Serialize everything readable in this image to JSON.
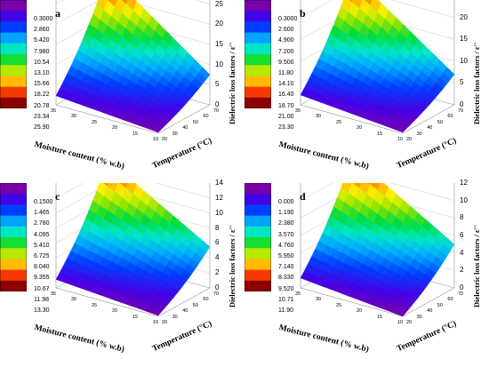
{
  "chart_data": [
    {
      "type": "surface3d",
      "panel": "a",
      "xlabel": "Moisture content (% w.b)",
      "ylabel": "Temperature (°C)",
      "zlabel": "Dielectric loss factors / ε''",
      "zticks": [
        "0",
        "5",
        "10",
        "15",
        "20",
        "25"
      ],
      "zlim": [
        0,
        26
      ],
      "colorbar_ticks": [
        "0.3000",
        "2.860",
        "5.420",
        "7.980",
        "10.54",
        "13.10",
        "15.66",
        "18.22",
        "20.78",
        "23.34",
        "25.90"
      ],
      "moisture_ticks": [
        "35",
        "30",
        "25",
        "20",
        "15",
        "10"
      ],
      "temperature_ticks": [
        "20",
        "30",
        "40",
        "50",
        "60",
        "70"
      ],
      "corners": {
        "high_moisture_high_temp": 25.9,
        "low_moisture_high_temp": 7.5,
        "high_moisture_low_temp": 3.0,
        "low_moisture_low_temp": 0.3
      }
    },
    {
      "type": "surface3d",
      "panel": "b",
      "xlabel": "Moisture content (% w.b)",
      "ylabel": "Temperature (°C)",
      "zlabel": "Dielectric loss factors / ε''",
      "zticks": [
        "0",
        "5",
        "10",
        "15",
        "20"
      ],
      "zlim": [
        0,
        24
      ],
      "colorbar_ticks": [
        "0.3000",
        "2.600",
        "4.900",
        "7.200",
        "9.500",
        "11.80",
        "14.10",
        "16.40",
        "18.70",
        "21.00",
        "23.30"
      ],
      "moisture_ticks": [
        "35",
        "30",
        "25",
        "20",
        "15",
        "10"
      ],
      "temperature_ticks": [
        "20",
        "30",
        "40",
        "50",
        "60",
        "70"
      ],
      "corners": {
        "high_moisture_high_temp": 23.3,
        "low_moisture_high_temp": 7.0,
        "high_moisture_low_temp": 3.0,
        "low_moisture_low_temp": 0.3
      }
    },
    {
      "type": "surface3d",
      "panel": "c",
      "xlabel": "Moisture content (% w.b)",
      "ylabel": "Temperature (°C)",
      "zlabel": "Dielectric loss factors / ε''",
      "zticks": [
        "0",
        "2",
        "4",
        "6",
        "8",
        "10",
        "12",
        "14"
      ],
      "zlim": [
        0,
        14
      ],
      "colorbar_ticks": [
        "0.1500",
        "1.465",
        "2.780",
        "4.095",
        "5.410",
        "6.725",
        "8.040",
        "9.355",
        "10.67",
        "11.98",
        "13.30"
      ],
      "moisture_ticks": [
        "35",
        "30",
        "25",
        "20",
        "15",
        "10"
      ],
      "temperature_ticks": [
        "20",
        "30",
        "40",
        "50",
        "60",
        "70"
      ],
      "corners": {
        "high_moisture_high_temp": 13.3,
        "low_moisture_high_temp": 5.5,
        "high_moisture_low_temp": 1.5,
        "low_moisture_low_temp": 0.15
      }
    },
    {
      "type": "surface3d",
      "panel": "d",
      "xlabel": "Moisture content (% w.b)",
      "ylabel": "Temperature (°C)",
      "zlabel": "Dielectric loss factors / ε''",
      "zticks": [
        "0",
        "2",
        "4",
        "6",
        "8",
        "10",
        "12"
      ],
      "zlim": [
        0,
        12
      ],
      "colorbar_ticks": [
        "0.000",
        "1.190",
        "2.380",
        "3.570",
        "4.760",
        "5.950",
        "7.140",
        "8.330",
        "9.520",
        "10.71",
        "11.90"
      ],
      "moisture_ticks": [
        "35",
        "30",
        "25",
        "20",
        "15",
        "10"
      ],
      "temperature_ticks": [
        "20",
        "30",
        "40",
        "50",
        "60",
        "70"
      ],
      "corners": {
        "high_moisture_high_temp": 11.9,
        "low_moisture_high_temp": 5.0,
        "high_moisture_low_temp": 1.5,
        "low_moisture_low_temp": 0.0
      }
    }
  ]
}
